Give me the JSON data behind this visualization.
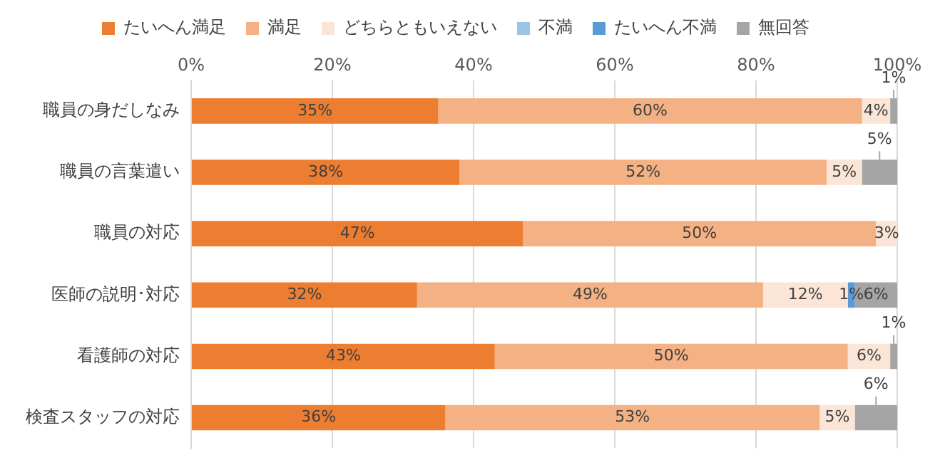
{
  "chart_data": {
    "type": "bar",
    "orientation": "horizontal",
    "stacked": true,
    "categories": [
      "職員の身だしなみ",
      "職員の言葉遣い",
      "職員の対応",
      "医師の説明･対応",
      "看護師の対応",
      "検査スタッフの対応"
    ],
    "series": [
      {
        "name": "たいへん満足",
        "color": "#ed7d31",
        "values": [
          35,
          38,
          47,
          32,
          43,
          36
        ],
        "value_labels": [
          "35%",
          "38%",
          "47%",
          "32%",
          "43%",
          "36%"
        ]
      },
      {
        "name": "満足",
        "color": "#f4b183",
        "values": [
          60,
          52,
          50,
          49,
          50,
          53
        ],
        "value_labels": [
          "60%",
          "52%",
          "50%",
          "49%",
          "50%",
          "53%"
        ]
      },
      {
        "name": "どちらともいえない",
        "color": "#fbe5d6",
        "values": [
          4,
          5,
          3,
          12,
          6,
          5
        ],
        "value_labels": [
          "4%",
          "5%",
          "3%",
          "12%",
          "6%",
          "5%"
        ]
      },
      {
        "name": "不満",
        "color": "#9dc3e6",
        "values": [
          0,
          0,
          0,
          0,
          0,
          0
        ],
        "value_labels": [
          null,
          null,
          null,
          null,
          null,
          null
        ]
      },
      {
        "name": "たいへん不満",
        "color": "#5b9bd5",
        "values": [
          0,
          0,
          0,
          1,
          0,
          0
        ],
        "value_labels": [
          null,
          null,
          null,
          "1%",
          null,
          null
        ]
      },
      {
        "name": "無回答",
        "color": "#a5a5a5",
        "values": [
          1,
          5,
          0,
          6,
          1,
          6
        ],
        "value_labels": [
          "1%",
          "5%",
          null,
          "6%",
          "1%",
          "6%"
        ]
      }
    ],
    "xlim": [
      0,
      100
    ],
    "xticks": [
      {
        "value": 0,
        "label": "0%"
      },
      {
        "value": 20,
        "label": "20%"
      },
      {
        "value": 40,
        "label": "40%"
      },
      {
        "value": 60,
        "label": "60%"
      },
      {
        "value": 80,
        "label": "80%"
      },
      {
        "value": 100,
        "label": "100%"
      }
    ],
    "grid": "x",
    "legend": "top"
  }
}
